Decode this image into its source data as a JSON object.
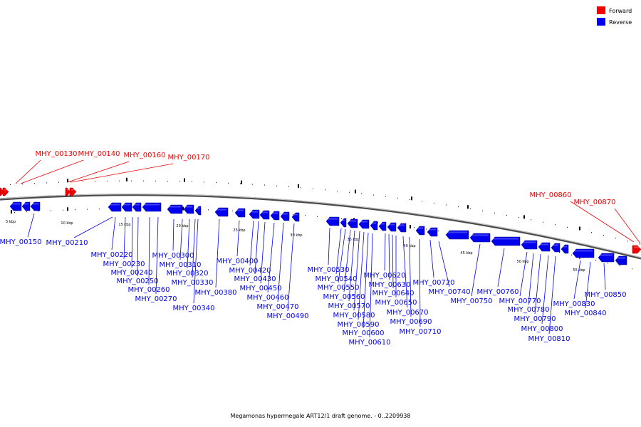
{
  "caption": "Megamonas hypermegale ART12/1 draft genome. - 0..2209938",
  "colors": {
    "forward": "#ee0000",
    "reverse": "#0000ee",
    "backbone": "#888888"
  },
  "legend": [
    {
      "label": "Forward",
      "color": "#ee0000"
    },
    {
      "label": "Reverse",
      "color": "#0000ee"
    }
  ],
  "scale_ticks": [
    "5 kbp",
    "10 kbp",
    "15 kbp",
    "20 kbp",
    "25 kbp",
    "30 kbp",
    "35 kbp",
    "40 kbp",
    "45 kbp",
    "50 kbp",
    "55 kbp"
  ],
  "genes": [
    {
      "id": "MHY_00130",
      "strand": "forward"
    },
    {
      "id": "MHY_00140",
      "strand": "forward"
    },
    {
      "id": "MHY_00150",
      "strand": "reverse"
    },
    {
      "id": "MHY_00160",
      "strand": "forward"
    },
    {
      "id": "MHY_00170",
      "strand": "forward"
    },
    {
      "id": "MHY_00210",
      "strand": "reverse"
    },
    {
      "id": "MHY_00220",
      "strand": "reverse"
    },
    {
      "id": "MHY_00230",
      "strand": "reverse"
    },
    {
      "id": "MHY_00240",
      "strand": "reverse"
    },
    {
      "id": "MHY_00250",
      "strand": "reverse"
    },
    {
      "id": "MHY_00260",
      "strand": "reverse"
    },
    {
      "id": "MHY_00270",
      "strand": "reverse"
    },
    {
      "id": "MHY_00300",
      "strand": "reverse"
    },
    {
      "id": "MHY_00310",
      "strand": "reverse"
    },
    {
      "id": "MHY_00320",
      "strand": "reverse"
    },
    {
      "id": "MHY_00330",
      "strand": "reverse"
    },
    {
      "id": "MHY_00340",
      "strand": "reverse"
    },
    {
      "id": "MHY_00380",
      "strand": "reverse"
    },
    {
      "id": "MHY_00400",
      "strand": "reverse"
    },
    {
      "id": "MHY_00420",
      "strand": "reverse"
    },
    {
      "id": "MHY_00430",
      "strand": "reverse"
    },
    {
      "id": "MHY_00450",
      "strand": "reverse"
    },
    {
      "id": "MHY_00460",
      "strand": "reverse"
    },
    {
      "id": "MHY_00470",
      "strand": "reverse"
    },
    {
      "id": "MHY_00490",
      "strand": "reverse"
    },
    {
      "id": "MHY_00530",
      "strand": "reverse"
    },
    {
      "id": "MHY_00540",
      "strand": "reverse"
    },
    {
      "id": "MHY_00550",
      "strand": "reverse"
    },
    {
      "id": "MHY_00560",
      "strand": "reverse"
    },
    {
      "id": "MHY_00570",
      "strand": "reverse"
    },
    {
      "id": "MHY_00580",
      "strand": "reverse"
    },
    {
      "id": "MHY_00590",
      "strand": "reverse"
    },
    {
      "id": "MHY_00600",
      "strand": "reverse"
    },
    {
      "id": "MHY_00610",
      "strand": "reverse"
    },
    {
      "id": "MHY_00620",
      "strand": "reverse"
    },
    {
      "id": "MHY_00630",
      "strand": "reverse"
    },
    {
      "id": "MHY_00640",
      "strand": "reverse"
    },
    {
      "id": "MHY_00650",
      "strand": "reverse"
    },
    {
      "id": "MHY_00670",
      "strand": "reverse"
    },
    {
      "id": "MHY_00690",
      "strand": "reverse"
    },
    {
      "id": "MHY_00710",
      "strand": "reverse"
    },
    {
      "id": "MHY_00720",
      "strand": "reverse"
    },
    {
      "id": "MHY_00740",
      "strand": "reverse"
    },
    {
      "id": "MHY_00750",
      "strand": "reverse"
    },
    {
      "id": "MHY_00760",
      "strand": "reverse"
    },
    {
      "id": "MHY_00770",
      "strand": "reverse"
    },
    {
      "id": "MHY_00780",
      "strand": "reverse"
    },
    {
      "id": "MHY_00790",
      "strand": "reverse"
    },
    {
      "id": "MHY_00800",
      "strand": "reverse"
    },
    {
      "id": "MHY_00810",
      "strand": "reverse"
    },
    {
      "id": "MHY_00830",
      "strand": "reverse"
    },
    {
      "id": "MHY_00840",
      "strand": "reverse"
    },
    {
      "id": "MHY_00850",
      "strand": "reverse"
    },
    {
      "id": "MHY_00860",
      "strand": "forward"
    },
    {
      "id": "MHY_00870",
      "strand": "forward"
    }
  ]
}
